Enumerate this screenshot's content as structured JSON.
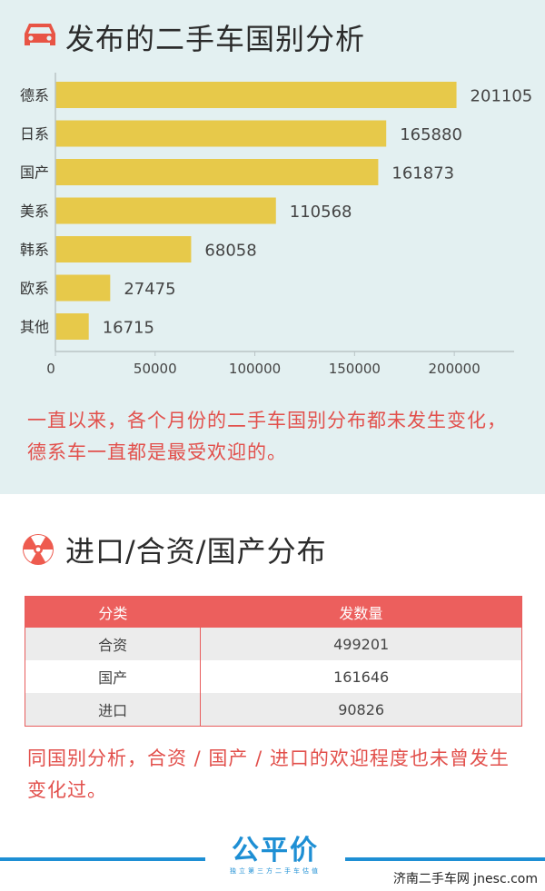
{
  "section1": {
    "title": "发布的二手车国别分析",
    "note": "一直以来，各个月份的二手车国别分布都未发生变化，德系车一直都是最受欢迎的。"
  },
  "chart_data": {
    "type": "bar",
    "orientation": "horizontal",
    "categories": [
      "德系",
      "日系",
      "国产",
      "美系",
      "韩系",
      "欧系",
      "其他"
    ],
    "values": [
      201105,
      165880,
      161873,
      110568,
      68058,
      27475,
      16715
    ],
    "x_ticks": [
      "0",
      "50000",
      "100000",
      "150000",
      "200000"
    ],
    "xlim": [
      0,
      230000
    ],
    "bar_color": "#e7c94a",
    "grid": false,
    "title": "",
    "xlabel": "",
    "ylabel": ""
  },
  "section2": {
    "title": "进口/合资/国产分布",
    "table": {
      "headers": [
        "分类",
        "发数量"
      ],
      "rows": [
        [
          "合资",
          "499201"
        ],
        [
          "国产",
          "161646"
        ],
        [
          "进口",
          "90826"
        ]
      ]
    },
    "note": "同国别分析，合资 / 国产 / 进口的欢迎程度也未曾发生变化过。"
  },
  "footer": {
    "logo_text": "公平价",
    "logo_sub": "独立第三方二手车估值",
    "site": "济南二手车网 jnesc.com"
  },
  "colors": {
    "accent_red": "#e2504c",
    "bar": "#e7c94a",
    "footer_blue": "#1e8fd4"
  }
}
